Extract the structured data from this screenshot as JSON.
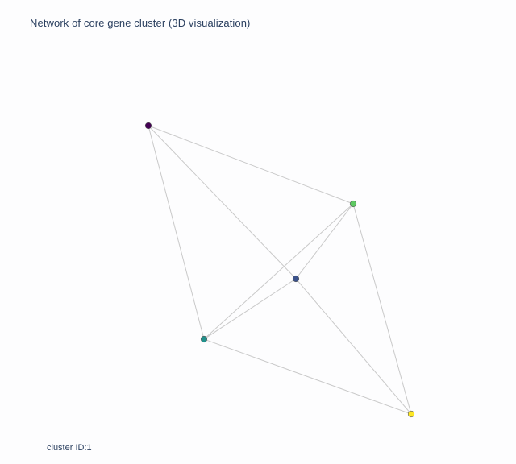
{
  "title": "Network of core gene cluster (3D visualization)",
  "footer": {
    "label": "cluster ID:",
    "value": "1"
  },
  "colors": {
    "edge": "#c9c9c9",
    "text": "#2a3f5f",
    "background": "#fdfdfe"
  },
  "network": {
    "nodes": [
      {
        "id": "n1",
        "color": "#440154"
      },
      {
        "id": "n2",
        "color": "#3b528b"
      },
      {
        "id": "n3",
        "color": "#21918c"
      },
      {
        "id": "n4",
        "color": "#5ec962"
      },
      {
        "id": "n5",
        "color": "#fde725"
      }
    ],
    "edges": [
      [
        "n1",
        "n4"
      ],
      [
        "n1",
        "n3"
      ],
      [
        "n1",
        "n2"
      ],
      [
        "n4",
        "n3"
      ],
      [
        "n4",
        "n2"
      ],
      [
        "n4",
        "n5"
      ],
      [
        "n3",
        "n2"
      ],
      [
        "n3",
        "n5"
      ],
      [
        "n2",
        "n5"
      ]
    ]
  }
}
